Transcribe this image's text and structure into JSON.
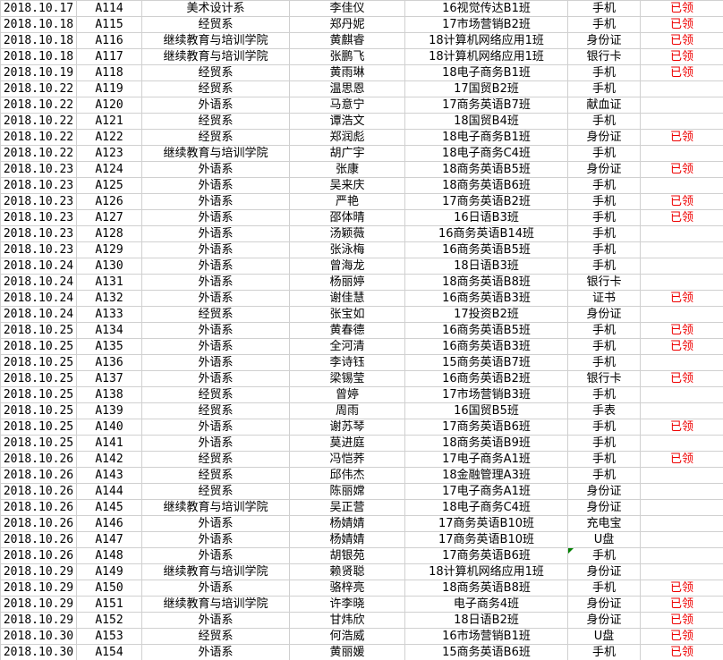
{
  "app": {
    "description": "spreadsheet-grid-of-claim-records"
  },
  "colors": {
    "claimed_red": "#ee0000",
    "marker_green": "#008000",
    "grid_line": "#d0d0d0",
    "text": "#000000",
    "background": "#ffffff"
  },
  "grid": {
    "columns": [
      "date",
      "receipt_id",
      "department",
      "name",
      "class",
      "item",
      "status"
    ],
    "status_claimed_label": "已领",
    "marker_cell": {
      "row_index": 34,
      "column": "item"
    },
    "rows": [
      [
        "2018.10.17",
        "A114",
        "美术设计系",
        "李佳仪",
        "16视觉传达B1班",
        "手机",
        "已领"
      ],
      [
        "2018.10.18",
        "A115",
        "经贸系",
        "郑丹妮",
        "17市场营销B2班",
        "手机",
        "已领"
      ],
      [
        "2018.10.18",
        "A116",
        "继续教育与培训学院",
        "黄麒睿",
        "18计算机网络应用1班",
        "身份证",
        "已领"
      ],
      [
        "2018.10.18",
        "A117",
        "继续教育与培训学院",
        "张鹏飞",
        "18计算机网络应用1班",
        "银行卡",
        "已领"
      ],
      [
        "2018.10.19",
        "A118",
        "经贸系",
        "黄雨琳",
        "18电子商务B1班",
        "手机",
        "已领"
      ],
      [
        "2018.10.22",
        "A119",
        "经贸系",
        "温思恩",
        "17国贸B2班",
        "手机",
        ""
      ],
      [
        "2018.10.22",
        "A120",
        "外语系",
        "马意宁",
        "17商务英语B7班",
        "献血证",
        ""
      ],
      [
        "2018.10.22",
        "A121",
        "经贸系",
        "谭浩文",
        "18国贸B4班",
        "手机",
        ""
      ],
      [
        "2018.10.22",
        "A122",
        "经贸系",
        "郑润彪",
        "18电子商务B1班",
        "身份证",
        "已领"
      ],
      [
        "2018.10.22",
        "A123",
        "继续教育与培训学院",
        "胡广宇",
        "18电子商务C4班",
        "手机",
        ""
      ],
      [
        "2018.10.23",
        "A124",
        "外语系",
        "张康",
        "18商务英语B5班",
        "身份证",
        "已领"
      ],
      [
        "2018.10.23",
        "A125",
        "外语系",
        "吴来庆",
        "18商务英语B6班",
        "手机",
        ""
      ],
      [
        "2018.10.23",
        "A126",
        "外语系",
        "严艳",
        "17商务英语B2班",
        "手机",
        "已领"
      ],
      [
        "2018.10.23",
        "A127",
        "外语系",
        "邵体晴",
        "16日语B3班",
        "手机",
        "已领"
      ],
      [
        "2018.10.23",
        "A128",
        "外语系",
        "汤颖薇",
        "16商务英语B14班",
        "手机",
        ""
      ],
      [
        "2018.10.23",
        "A129",
        "外语系",
        "张泳梅",
        "16商务英语B5班",
        "手机",
        ""
      ],
      [
        "2018.10.24",
        "A130",
        "外语系",
        "曾海龙",
        "18日语B3班",
        "手机",
        ""
      ],
      [
        "2018.10.24",
        "A131",
        "外语系",
        "杨丽婷",
        "18商务英语B8班",
        "银行卡",
        ""
      ],
      [
        "2018.10.24",
        "A132",
        "外语系",
        "谢佳慧",
        "16商务英语B3班",
        "证书",
        "已领"
      ],
      [
        "2018.10.24",
        "A133",
        "经贸系",
        "张宝如",
        "17投资B2班",
        "身份证",
        ""
      ],
      [
        "2018.10.25",
        "A134",
        "外语系",
        "黄春德",
        "16商务英语B5班",
        "手机",
        "已领"
      ],
      [
        "2018.10.25",
        "A135",
        "外语系",
        "全河清",
        "16商务英语B3班",
        "手机",
        "已领"
      ],
      [
        "2018.10.25",
        "A136",
        "外语系",
        "李诗钰",
        "15商务英语B7班",
        "手机",
        ""
      ],
      [
        "2018.10.25",
        "A137",
        "外语系",
        "梁锡莹",
        "16商务英语B2班",
        "银行卡",
        "已领"
      ],
      [
        "2018.10.25",
        "A138",
        "经贸系",
        "曾婷",
        "17市场营销B3班",
        "手机",
        ""
      ],
      [
        "2018.10.25",
        "A139",
        "经贸系",
        "周雨",
        "16国贸B5班",
        "手表",
        ""
      ],
      [
        "2018.10.25",
        "A140",
        "外语系",
        "谢苏琴",
        "17商务英语B6班",
        "手机",
        "已领"
      ],
      [
        "2018.10.25",
        "A141",
        "外语系",
        "莫进庭",
        "18商务英语B9班",
        "手机",
        ""
      ],
      [
        "2018.10.26",
        "A142",
        "经贸系",
        "冯恺荞",
        "17电子商务A1班",
        "手机",
        "已领"
      ],
      [
        "2018.10.26",
        "A143",
        "经贸系",
        "邱伟杰",
        "18金融管理A3班",
        "手机",
        ""
      ],
      [
        "2018.10.26",
        "A144",
        "经贸系",
        "陈丽嫦",
        "17电子商务A1班",
        "身份证",
        ""
      ],
      [
        "2018.10.26",
        "A145",
        "继续教育与培训学院",
        "吴正营",
        "18电子商务C4班",
        "身份证",
        ""
      ],
      [
        "2018.10.26",
        "A146",
        "外语系",
        "杨婧婧",
        "17商务英语B10班",
        "充电宝",
        ""
      ],
      [
        "2018.10.26",
        "A147",
        "外语系",
        "杨婧婧",
        "17商务英语B10班",
        "U盘",
        ""
      ],
      [
        "2018.10.26",
        "A148",
        "外语系",
        "胡银苑",
        "17商务英语B6班",
        "手机",
        ""
      ],
      [
        "2018.10.29",
        "A149",
        "继续教育与培训学院",
        "赖贤聪",
        "18计算机网络应用1班",
        "身份证",
        ""
      ],
      [
        "2018.10.29",
        "A150",
        "外语系",
        "骆梓亮",
        "18商务英语B8班",
        "手机",
        "已领"
      ],
      [
        "2018.10.29",
        "A151",
        "继续教育与培训学院",
        "许李晓",
        "电子商务4班",
        "身份证",
        "已领"
      ],
      [
        "2018.10.29",
        "A152",
        "外语系",
        "甘炜欣",
        "18日语B2班",
        "身份证",
        "已领"
      ],
      [
        "2018.10.30",
        "A153",
        "经贸系",
        "何浩威",
        "16市场营销B1班",
        "U盘",
        "已领"
      ],
      [
        "2018.10.30",
        "A154",
        "外语系",
        "黄丽媛",
        "15商务英语B6班",
        "手机",
        "已领"
      ]
    ]
  }
}
